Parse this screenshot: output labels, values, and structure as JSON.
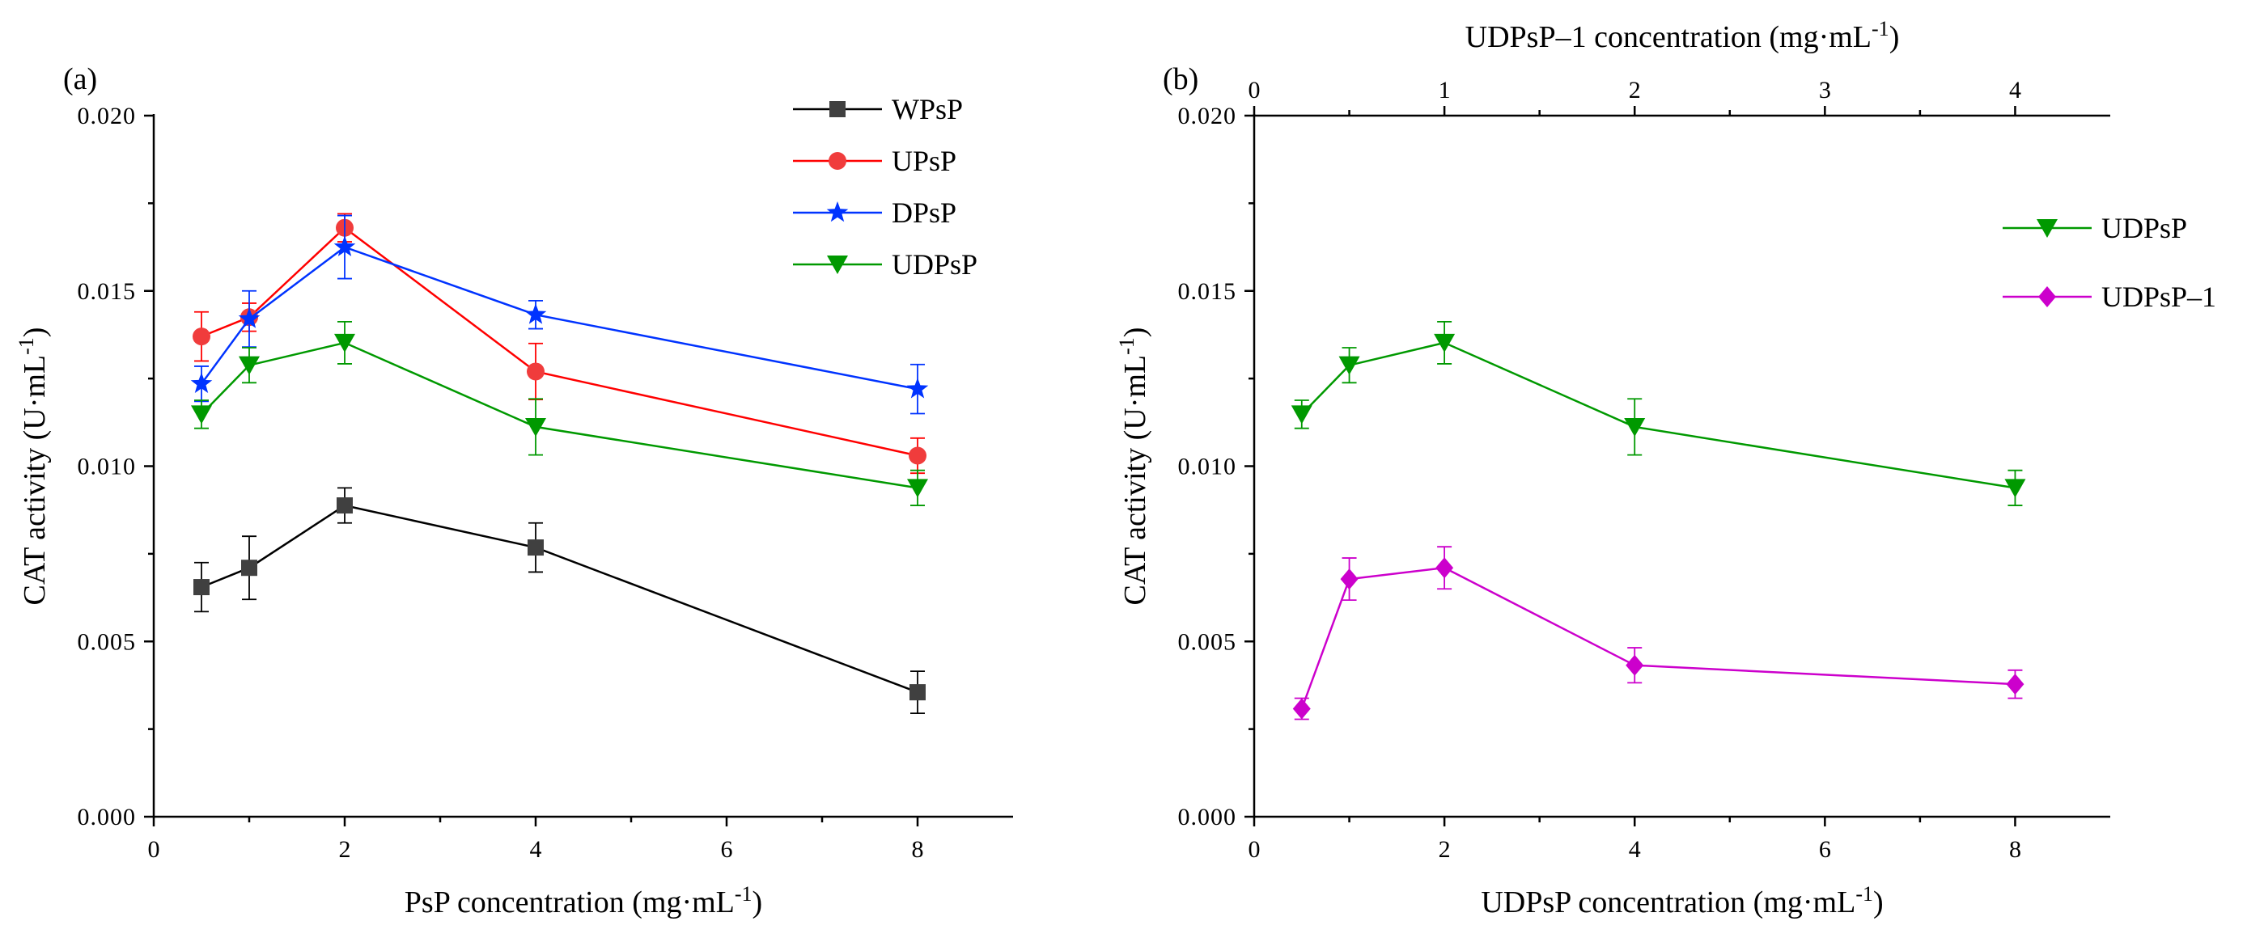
{
  "chart_data": [
    {
      "type": "line",
      "panel_label": "(a)",
      "xlabel_main": "PsP concentration (mg·mL",
      "xlabel_sup": "-1",
      "xlabel_tail": ")",
      "ylabel_main": "CAT activity (U·mL",
      "ylabel_sup": "-1",
      "ylabel_tail": ")",
      "xlim": [
        0,
        9
      ],
      "ylim": [
        0,
        0.02
      ],
      "xticks": [
        0,
        2,
        4,
        6,
        8
      ],
      "xtick_labels": [
        "0",
        "2",
        "4",
        "6",
        "8"
      ],
      "yticks": [
        0,
        0.005,
        0.01,
        0.015,
        0.02
      ],
      "ytick_labels": [
        "0.000",
        "0.005",
        "0.010",
        "0.015",
        "0.020"
      ],
      "legend_position": "top-right",
      "x": [
        0.5,
        1,
        2,
        4,
        8
      ],
      "series": [
        {
          "name": "WPsP",
          "color": "#000000",
          "marker_color": "#404040",
          "marker": "square",
          "values": [
            0.00655,
            0.0071,
            0.00888,
            0.00768,
            0.00355
          ],
          "errors": [
            0.0007,
            0.0009,
            0.0005,
            0.0007,
            0.0006
          ]
        },
        {
          "name": "UPsP",
          "color": "#ff0000",
          "marker_color": "#f03c3c",
          "marker": "circle",
          "values": [
            0.0137,
            0.01425,
            0.0168,
            0.0127,
            0.0103
          ],
          "errors": [
            0.0007,
            0.0004,
            0.0004,
            0.0008,
            0.0005
          ]
        },
        {
          "name": "DPsP",
          "color": "#0033ff",
          "marker_color": "#0033ff",
          "marker": "star",
          "values": [
            0.01235,
            0.0142,
            0.01625,
            0.01432,
            0.0122
          ],
          "errors": [
            0.0005,
            0.0008,
            0.0009,
            0.0004,
            0.0007
          ]
        },
        {
          "name": "UDPsP",
          "color": "#009900",
          "marker_color": "#009900",
          "marker": "triangle-down",
          "values": [
            0.01148,
            0.01288,
            0.01352,
            0.01112,
            0.00938
          ],
          "errors": [
            0.0004,
            0.0005,
            0.0006,
            0.0008,
            0.0005
          ]
        }
      ]
    },
    {
      "type": "line",
      "panel_label": "(b)",
      "xlabel_main": "UDPsP concentration (mg·mL",
      "xlabel_sup": "-1",
      "xlabel_tail": ")",
      "x2label_main": "UDPsP–1 concentration (mg·mL",
      "x2label_sup": "-1",
      "x2label_tail": ")",
      "ylabel_main": "CAT activity (U·mL",
      "ylabel_sup": "-1",
      "ylabel_tail": ")",
      "xlim": [
        0,
        9
      ],
      "x2lim": [
        0,
        4.5
      ],
      "ylim": [
        0,
        0.02
      ],
      "xticks": [
        0,
        2,
        4,
        6,
        8
      ],
      "xtick_labels": [
        "0",
        "2",
        "4",
        "6",
        "8"
      ],
      "x2ticks": [
        0,
        1,
        2,
        3,
        4
      ],
      "x2tick_labels": [
        "0",
        "1",
        "2",
        "3",
        "4"
      ],
      "yticks": [
        0,
        0.005,
        0.01,
        0.015,
        0.02
      ],
      "ytick_labels": [
        "0.000",
        "0.005",
        "0.010",
        "0.015",
        "0.020"
      ],
      "legend_position": "right",
      "x": [
        0.5,
        1,
        2,
        4,
        8
      ],
      "series": [
        {
          "name": "UDPsP",
          "color": "#009900",
          "marker_color": "#009900",
          "marker": "triangle-down",
          "values": [
            0.01148,
            0.01288,
            0.01352,
            0.01112,
            0.00938
          ],
          "errors": [
            0.0004,
            0.0005,
            0.0006,
            0.0008,
            0.0005
          ]
        },
        {
          "name": "UDPsP–1",
          "color": "#cc00cc",
          "marker_color": "#cc00cc",
          "marker": "diamond",
          "values": [
            0.00308,
            0.00678,
            0.0071,
            0.00432,
            0.00378
          ],
          "errors": [
            0.0003,
            0.0006,
            0.0006,
            0.0005,
            0.0004
          ]
        }
      ]
    }
  ]
}
